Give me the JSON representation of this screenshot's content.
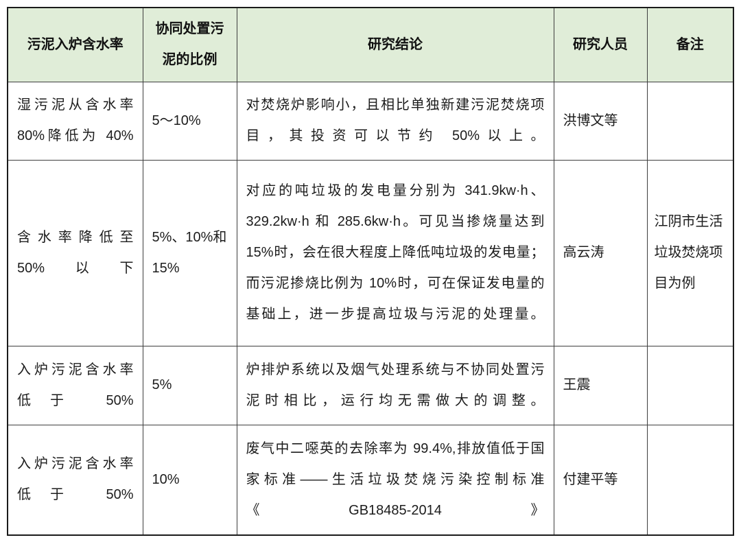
{
  "table": {
    "headers": [
      "污泥入炉含水率",
      "协同处置污泥的比例",
      "研究结论",
      "研究人员",
      "备注"
    ],
    "rows": [
      {
        "moisture": "湿污泥从含水率\n80%降低为 40%",
        "ratio": "5～10%",
        "conclusion": "对焚烧炉影响小，且相比单独新建污泥焚烧项\n目，其投资可以节约 50%以上。",
        "researcher": "洪博文等",
        "remark": ""
      },
      {
        "moisture": "含水率降低至\n50%以下",
        "ratio": "5%、10%和\n15%",
        "conclusion": "对应的吨垃圾的发电量分别为 341.9kw·h、\n329.2kw·h 和 285.6kw·h。可见当掺烧量达到\n15%时，会在很大程度上降低吨垃圾的发电量；\n而污泥掺烧比例为 10%时，可在保证发电量的\n基础上，进一步提高垃圾与污泥的处理量。",
        "researcher": "高云涛",
        "remark": "江阴市生活\n垃圾焚烧项\n目为例"
      },
      {
        "moisture": "入炉污泥含水率\n低于 50%",
        "ratio": "5%",
        "conclusion": "炉排炉系统以及烟气处理系统与不协同处置污\n泥时相比，运行均无需做大的调整。",
        "researcher": "王震",
        "remark": ""
      },
      {
        "moisture": "入炉污泥含水率\n低于 50%",
        "ratio": "10%",
        "conclusion": "废气中二噁英的去除率为 99.4%,排放值低于国\n家标准——生活垃圾焚烧污染控制标准\n《GB18485-2014》",
        "researcher": "付建平等",
        "remark": ""
      }
    ],
    "colors": {
      "header_bg": "#e0edd8",
      "border_inner": "#3d3d3d",
      "border_outer": "#1a1a1a",
      "text": "#1c1c1c"
    }
  }
}
